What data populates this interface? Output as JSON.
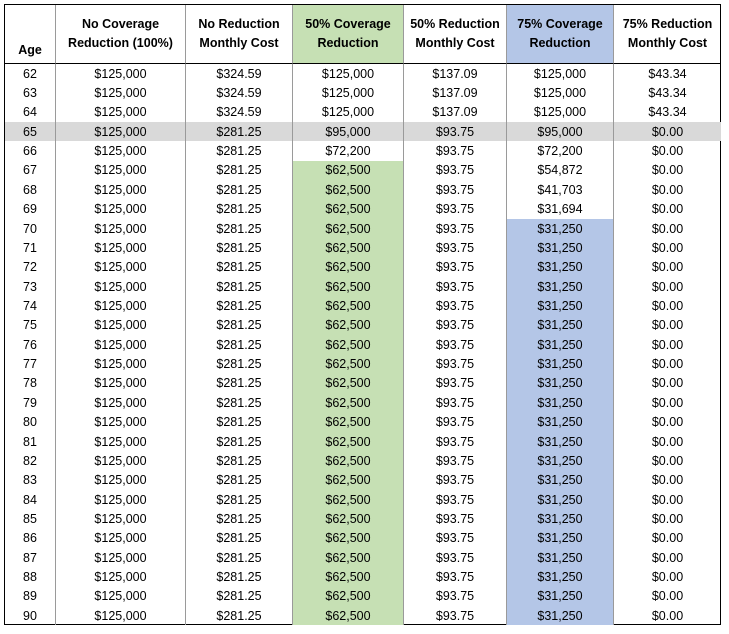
{
  "table": {
    "header": [
      [
        "Age"
      ],
      [
        "No Coverage",
        "Reduction (100%)"
      ],
      [
        "No Reduction",
        "Monthly Cost"
      ],
      [
        "50% Coverage",
        "Reduction"
      ],
      [
        "50% Reduction",
        "Monthly Cost"
      ],
      [
        "75% Coverage",
        "Reduction"
      ],
      [
        "75% Reduction",
        "Monthly Cost"
      ]
    ],
    "rows": [
      [
        "62",
        "$125,000",
        "$324.59",
        "$125,000",
        "$137.09",
        "$125,000",
        "$43.34"
      ],
      [
        "63",
        "$125,000",
        "$324.59",
        "$125,000",
        "$137.09",
        "$125,000",
        "$43.34"
      ],
      [
        "64",
        "$125,000",
        "$324.59",
        "$125,000",
        "$137.09",
        "$125,000",
        "$43.34"
      ],
      [
        "65",
        "$125,000",
        "$281.25",
        "$95,000",
        "$93.75",
        "$95,000",
        "$0.00"
      ],
      [
        "66",
        "$125,000",
        "$281.25",
        "$72,200",
        "$93.75",
        "$72,200",
        "$0.00"
      ],
      [
        "67",
        "$125,000",
        "$281.25",
        "$62,500",
        "$93.75",
        "$54,872",
        "$0.00"
      ],
      [
        "68",
        "$125,000",
        "$281.25",
        "$62,500",
        "$93.75",
        "$41,703",
        "$0.00"
      ],
      [
        "69",
        "$125,000",
        "$281.25",
        "$62,500",
        "$93.75",
        "$31,694",
        "$0.00"
      ],
      [
        "70",
        "$125,000",
        "$281.25",
        "$62,500",
        "$93.75",
        "$31,250",
        "$0.00"
      ],
      [
        "71",
        "$125,000",
        "$281.25",
        "$62,500",
        "$93.75",
        "$31,250",
        "$0.00"
      ],
      [
        "72",
        "$125,000",
        "$281.25",
        "$62,500",
        "$93.75",
        "$31,250",
        "$0.00"
      ],
      [
        "73",
        "$125,000",
        "$281.25",
        "$62,500",
        "$93.75",
        "$31,250",
        "$0.00"
      ],
      [
        "74",
        "$125,000",
        "$281.25",
        "$62,500",
        "$93.75",
        "$31,250",
        "$0.00"
      ],
      [
        "75",
        "$125,000",
        "$281.25",
        "$62,500",
        "$93.75",
        "$31,250",
        "$0.00"
      ],
      [
        "76",
        "$125,000",
        "$281.25",
        "$62,500",
        "$93.75",
        "$31,250",
        "$0.00"
      ],
      [
        "77",
        "$125,000",
        "$281.25",
        "$62,500",
        "$93.75",
        "$31,250",
        "$0.00"
      ],
      [
        "78",
        "$125,000",
        "$281.25",
        "$62,500",
        "$93.75",
        "$31,250",
        "$0.00"
      ],
      [
        "79",
        "$125,000",
        "$281.25",
        "$62,500",
        "$93.75",
        "$31,250",
        "$0.00"
      ],
      [
        "80",
        "$125,000",
        "$281.25",
        "$62,500",
        "$93.75",
        "$31,250",
        "$0.00"
      ],
      [
        "81",
        "$125,000",
        "$281.25",
        "$62,500",
        "$93.75",
        "$31,250",
        "$0.00"
      ],
      [
        "82",
        "$125,000",
        "$281.25",
        "$62,500",
        "$93.75",
        "$31,250",
        "$0.00"
      ],
      [
        "83",
        "$125,000",
        "$281.25",
        "$62,500",
        "$93.75",
        "$31,250",
        "$0.00"
      ],
      [
        "84",
        "$125,000",
        "$281.25",
        "$62,500",
        "$93.75",
        "$31,250",
        "$0.00"
      ],
      [
        "85",
        "$125,000",
        "$281.25",
        "$62,500",
        "$93.75",
        "$31,250",
        "$0.00"
      ],
      [
        "86",
        "$125,000",
        "$281.25",
        "$62,500",
        "$93.75",
        "$31,250",
        "$0.00"
      ],
      [
        "87",
        "$125,000",
        "$281.25",
        "$62,500",
        "$93.75",
        "$31,250",
        "$0.00"
      ],
      [
        "88",
        "$125,000",
        "$281.25",
        "$62,500",
        "$93.75",
        "$31,250",
        "$0.00"
      ],
      [
        "89",
        "$125,000",
        "$281.25",
        "$62,500",
        "$93.75",
        "$31,250",
        "$0.00"
      ],
      [
        "90",
        "$125,000",
        "$281.25",
        "$62,500",
        "$93.75",
        "$31,250",
        "$0.00"
      ]
    ]
  }
}
